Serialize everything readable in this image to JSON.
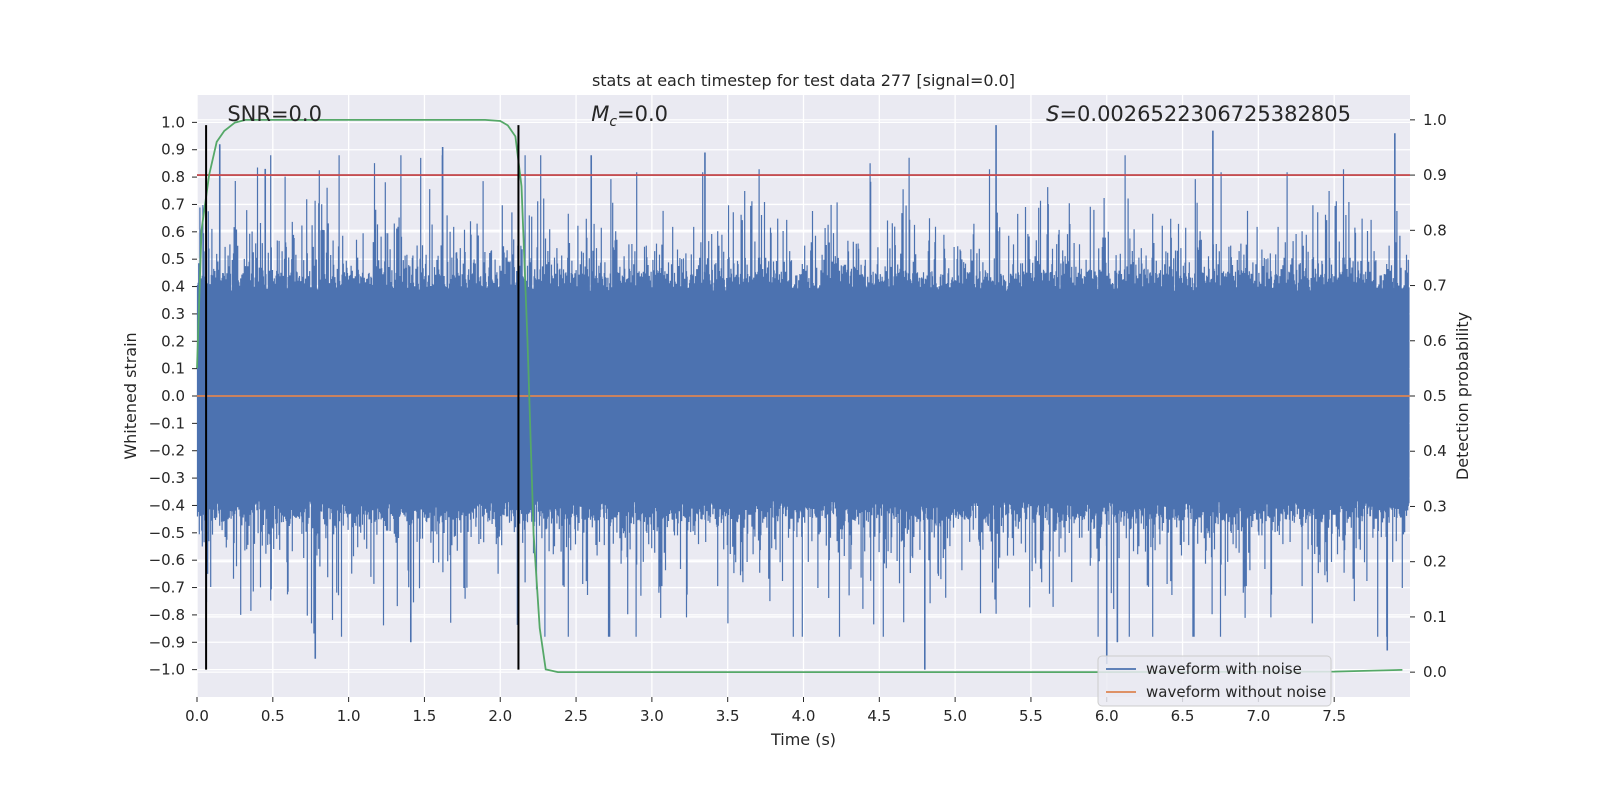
{
  "chart_data": {
    "type": "line",
    "title": "stats at each timestep for test data 277 [signal=0.0]",
    "xlabel": "Time (s)",
    "ylabel": "Whitened strain",
    "y2label": "Detection probability",
    "xlim": [
      0.0,
      8.0
    ],
    "ylim": [
      -1.1,
      1.1
    ],
    "y2lim": [
      -0.045,
      1.045
    ],
    "xticks": [
      0.0,
      0.5,
      1.0,
      1.5,
      2.0,
      2.5,
      3.0,
      3.5,
      4.0,
      4.5,
      5.0,
      5.5,
      6.0,
      6.5,
      7.0,
      7.5
    ],
    "xtick_labels": [
      "0.0",
      "0.5",
      "1.0",
      "1.5",
      "2.0",
      "2.5",
      "3.0",
      "3.5",
      "4.0",
      "4.5",
      "5.0",
      "5.5",
      "6.0",
      "6.5",
      "7.0",
      "7.5"
    ],
    "yticks": [
      -1.0,
      -0.9,
      -0.8,
      -0.7,
      -0.6,
      -0.5,
      -0.4,
      -0.3,
      -0.2,
      -0.1,
      0.0,
      0.1,
      0.2,
      0.3,
      0.4,
      0.5,
      0.6,
      0.7,
      0.8,
      0.9,
      1.0
    ],
    "ytick_labels": [
      "−1.0",
      "−0.9",
      "−0.8",
      "−0.7",
      "−0.6",
      "−0.5",
      "−0.4",
      "−0.3",
      "−0.2",
      "−0.1",
      "0.0",
      "0.1",
      "0.2",
      "0.3",
      "0.4",
      "0.5",
      "0.6",
      "0.7",
      "0.8",
      "0.9",
      "1.0"
    ],
    "y2ticks": [
      0.0,
      0.1,
      0.2,
      0.3,
      0.4,
      0.5,
      0.6,
      0.7,
      0.8,
      0.9,
      1.0
    ],
    "y2tick_labels": [
      "0.0",
      "0.1",
      "0.2",
      "0.3",
      "0.4",
      "0.5",
      "0.6",
      "0.7",
      "0.8",
      "0.9",
      "1.0"
    ],
    "grid": true,
    "series": [
      {
        "name": "waveform with noise",
        "color": "#4c72b0",
        "axis": "left",
        "kind": "dense noise",
        "envelope_typical": [
          -0.45,
          0.45
        ],
        "extremes": [
          -1.0,
          0.99
        ],
        "peaks": [
          {
            "x": 0.15,
            "y": 0.92
          },
          {
            "x": 0.45,
            "y": 0.83
          },
          {
            "x": 1.62,
            "y": 0.91
          },
          {
            "x": 2.6,
            "y": 0.88
          },
          {
            "x": 3.35,
            "y": 0.89
          },
          {
            "x": 5.27,
            "y": 0.99
          },
          {
            "x": 6.7,
            "y": 0.97
          },
          {
            "x": 7.9,
            "y": 0.96
          },
          {
            "x": 0.78,
            "y": -0.96
          },
          {
            "x": 1.41,
            "y": -0.9
          },
          {
            "x": 4.8,
            "y": -1.0
          },
          {
            "x": 6.0,
            "y": -0.98
          },
          {
            "x": 6.07,
            "y": -0.9
          },
          {
            "x": 7.85,
            "y": -0.93
          }
        ]
      },
      {
        "name": "waveform without noise",
        "color": "#dd8452",
        "axis": "left",
        "x": [
          0.0,
          8.0
        ],
        "y": [
          0.0,
          0.0
        ]
      },
      {
        "name": "detection probability",
        "color": "#55a868",
        "axis": "right",
        "x": [
          0.0,
          0.03,
          0.08,
          0.13,
          0.18,
          0.25,
          0.32,
          0.4,
          0.6,
          1.0,
          1.5,
          1.9,
          2.0,
          2.05,
          2.1,
          2.14,
          2.18,
          2.22,
          2.26,
          2.3,
          2.38,
          2.5,
          4.0,
          6.0,
          7.5,
          7.95
        ],
        "y": [
          0.55,
          0.8,
          0.9,
          0.96,
          0.98,
          0.995,
          1.0,
          1.0,
          1.0,
          1.0,
          1.0,
          1.0,
          0.998,
          0.99,
          0.97,
          0.88,
          0.6,
          0.25,
          0.08,
          0.005,
          0.0,
          0.0,
          0.0,
          0.0,
          0.001,
          0.004
        ]
      },
      {
        "name": "threshold",
        "color": "#c44e52",
        "axis": "right",
        "x": [
          0.0,
          8.0
        ],
        "y": [
          0.9,
          0.9
        ]
      }
    ],
    "vlines": [
      {
        "x": 0.06,
        "color": "#000000"
      },
      {
        "x": 2.12,
        "color": "#000000"
      }
    ],
    "annotations": [
      {
        "text": "SNR=0.0",
        "x": 0.2,
        "y": 1.03
      },
      {
        "text": "=0.0",
        "symbol": "M",
        "sub": "c",
        "x": 2.6,
        "y": 1.03
      },
      {
        "text": "=0.0026522306725382805",
        "symbol": "S",
        "x": 5.6,
        "y": 1.03
      }
    ],
    "legend": {
      "placement": "bottom-right",
      "entries": [
        {
          "label": "waveform with noise",
          "color": "#4c72b0"
        },
        {
          "label": "waveform without noise",
          "color": "#dd8452"
        }
      ]
    }
  }
}
